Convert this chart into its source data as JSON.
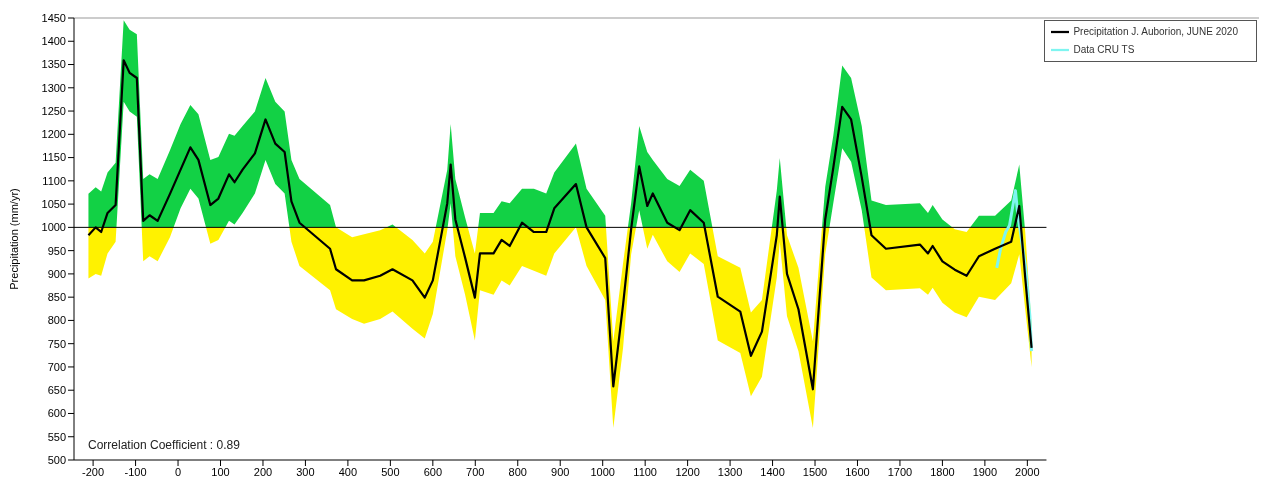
{
  "chart_data": {
    "type": "line",
    "ylabel": "Precipitation (mm/yr)",
    "annotations": [
      "Correlation Coefficient : 0.89"
    ],
    "xlim": [
      -245,
      2045
    ],
    "xticks": [
      -200,
      -100,
      0,
      100,
      200,
      300,
      400,
      500,
      600,
      700,
      800,
      900,
      1000,
      1100,
      1200,
      1300,
      1400,
      1500,
      1600,
      1700,
      1800,
      1900,
      2000
    ],
    "ylim": [
      500,
      1450
    ],
    "yticks": [
      500,
      550,
      600,
      650,
      700,
      750,
      800,
      850,
      900,
      950,
      1000,
      1050,
      1100,
      1150,
      1200,
      1250,
      1300,
      1350,
      1400,
      1450
    ],
    "legend": "top right",
    "marker": "none",
    "line_style": "solid",
    "ref_lines": [
      {
        "axis": "y",
        "value": 1000,
        "color": "#000000"
      }
    ],
    "series": [
      {
        "name": "Precipitation J. Auborion, JUNE 2020",
        "color": "#000000",
        "x": [
          -211,
          -194,
          -181,
          -166,
          -147,
          -128,
          -114,
          -97,
          -82,
          -67,
          -48,
          -19,
          6,
          29,
          48,
          76,
          95,
          120,
          133,
          152,
          181,
          206,
          229,
          251,
          267,
          286,
          358,
          372,
          410,
          438,
          476,
          505,
          552,
          581,
          600,
          634,
          642,
          653,
          676,
          699,
          711,
          743,
          762,
          781,
          810,
          838,
          867,
          886,
          937,
          962,
          1006,
          1025,
          1048,
          1067,
          1086,
          1105,
          1118,
          1152,
          1181,
          1206,
          1238,
          1271,
          1324,
          1349,
          1375,
          1410,
          1417,
          1434,
          1461,
          1495,
          1524,
          1543,
          1564,
          1585,
          1610,
          1633,
          1667,
          1747,
          1766,
          1777,
          1800,
          1829,
          1857,
          1886,
          1924,
          1962,
          1981,
          1995,
          2010
        ],
        "values": [
          983,
          1000,
          990,
          1031,
          1048,
          1359,
          1332,
          1321,
          1014,
          1026,
          1014,
          1072,
          1124,
          1172,
          1145,
          1048,
          1062,
          1114,
          1097,
          1124,
          1159,
          1232,
          1180,
          1162,
          1056,
          1010,
          954,
          910,
          886,
          886,
          896,
          910,
          886,
          849,
          886,
          1052,
          1135,
          1017,
          935,
          849,
          944,
          944,
          973,
          960,
          1010,
          990,
          990,
          1041,
          1093,
          1000,
          934,
          658,
          834,
          996,
          1131,
          1046,
          1073,
          1010,
          994,
          1037,
          1010,
          851,
          819,
          724,
          776,
          983,
          1066,
          900,
          824,
          652,
          1017,
          1128,
          1259,
          1232,
          1108,
          983,
          954,
          963,
          944,
          960,
          927,
          909,
          896,
          938,
          954,
          969,
          1046,
          892,
          741
        ],
        "upper": [
          1072,
          1086,
          1077,
          1118,
          1139,
          1445,
          1425,
          1415,
          1104,
          1114,
          1104,
          1166,
          1222,
          1263,
          1243,
          1145,
          1151,
          1201,
          1197,
          1218,
          1249,
          1321,
          1270,
          1249,
          1145,
          1104,
          1048,
          1000,
          979,
          985,
          994,
          1006,
          973,
          944,
          969,
          1124,
          1222,
          1104,
          1021,
          944,
          1031,
          1031,
          1056,
          1052,
          1083,
          1083,
          1073,
          1118,
          1180,
          1083,
          1025,
          755,
          923,
          1052,
          1218,
          1162,
          1145,
          1104,
          1089,
          1124,
          1100,
          938,
          913,
          817,
          844,
          1079,
          1149,
          983,
          913,
          755,
          1087,
          1197,
          1348,
          1321,
          1218,
          1058,
          1048,
          1052,
          1031,
          1048,
          1017,
          996,
          990,
          1025,
          1025,
          1058,
          1135,
          990,
          788
        ],
        "lower": [
          890,
          900,
          896,
          944,
          969,
          1270,
          1249,
          1238,
          927,
          938,
          927,
          979,
          1041,
          1083,
          1062,
          965,
          973,
          1014,
          1006,
          1031,
          1073,
          1145,
          1093,
          1073,
          969,
          917,
          865,
          824,
          803,
          793,
          803,
          819,
          782,
          761,
          814,
          994,
          1052,
          938,
          855,
          757,
          865,
          855,
          886,
          875,
          917,
          907,
          896,
          944,
          1000,
          917,
          844,
          569,
          741,
          942,
          1037,
          954,
          984,
          927,
          904,
          944,
          921,
          757,
          730,
          637,
          679,
          892,
          969,
          809,
          734,
          569,
          942,
          1052,
          1170,
          1141,
          1037,
          892,
          865,
          869,
          855,
          870,
          838,
          817,
          807,
          851,
          844,
          880,
          942,
          824,
          700
        ]
      },
      {
        "name": "Data CRU TS",
        "color": "#7ff5f0",
        "x": [
          1928,
          1937,
          1949,
          1958,
          1972,
          1977,
          1987,
          1996,
          2006,
          2010
        ],
        "values": [
          913,
          954,
          990,
          1004,
          1079,
          1031,
          969,
          913,
          809,
          734
        ]
      }
    ]
  }
}
